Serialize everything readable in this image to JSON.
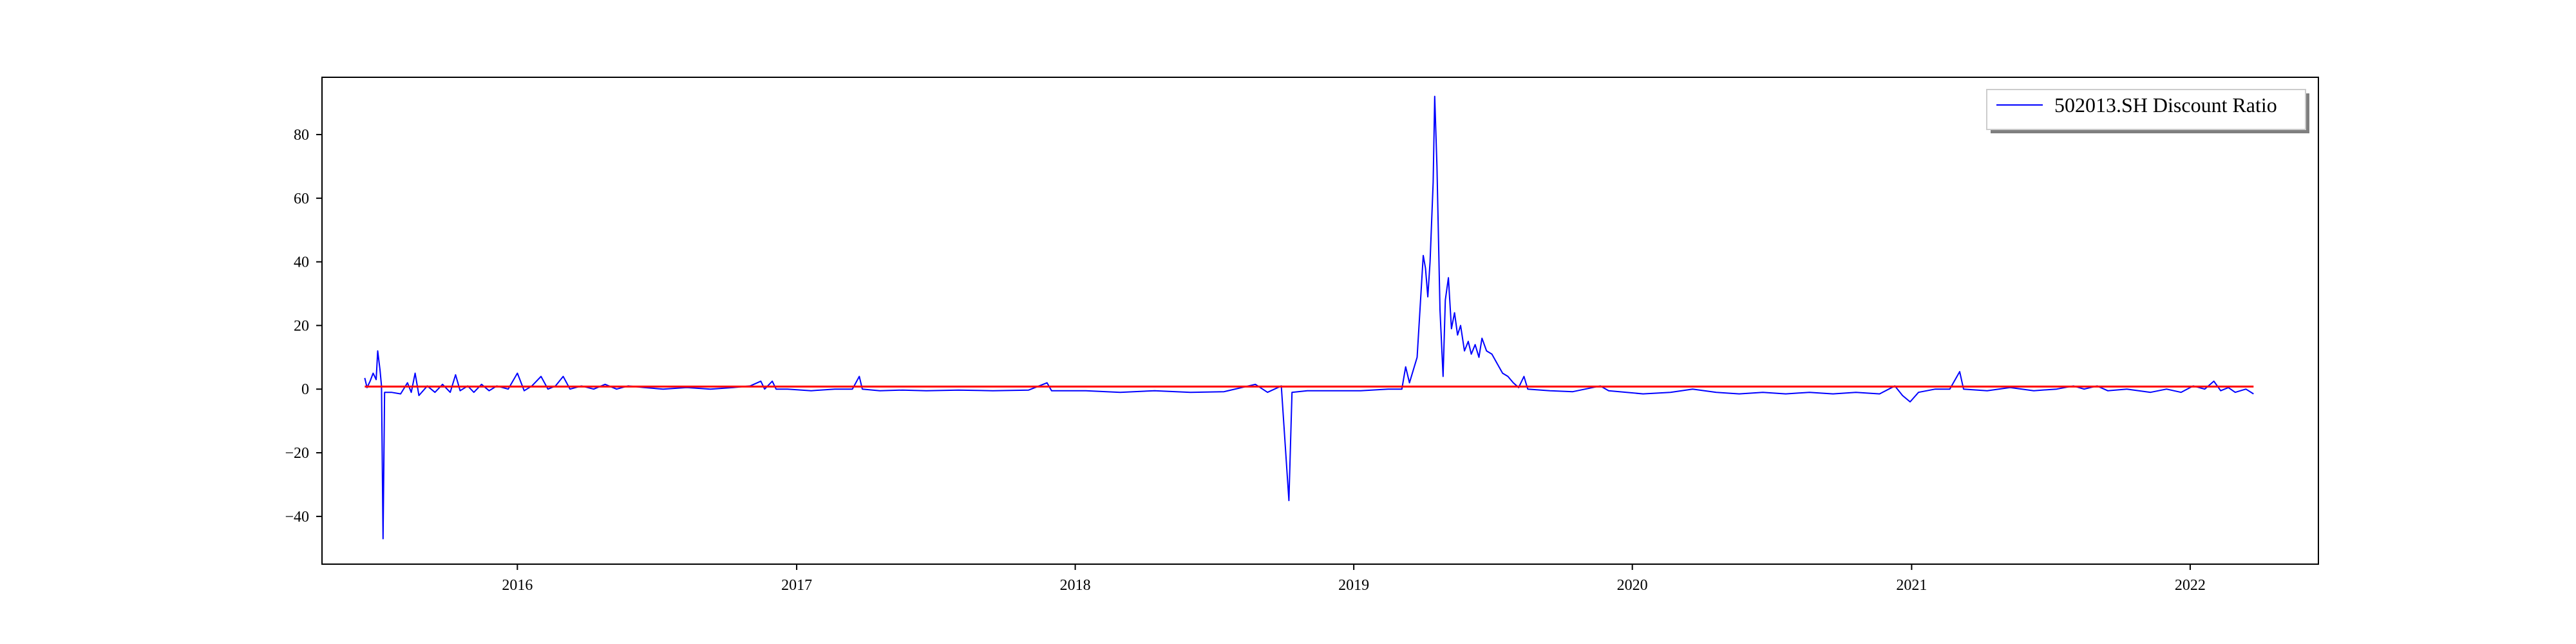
{
  "chart_data": {
    "type": "line",
    "title": "",
    "xlabel": "",
    "ylabel": "",
    "xlim": [
      "2015-04-20",
      "2022-06-18"
    ],
    "ylim": [
      -55,
      98
    ],
    "x_ticks": [
      {
        "date": "2016-01-01",
        "label": "2016"
      },
      {
        "date": "2017-01-01",
        "label": "2017"
      },
      {
        "date": "2018-01-01",
        "label": "2018"
      },
      {
        "date": "2019-01-01",
        "label": "2019"
      },
      {
        "date": "2020-01-01",
        "label": "2020"
      },
      {
        "date": "2021-01-01",
        "label": "2021"
      },
      {
        "date": "2022-01-01",
        "label": "2022"
      }
    ],
    "y_ticks": [
      -40,
      -20,
      0,
      20,
      40,
      60,
      80
    ],
    "grid": false,
    "legend": {
      "placement": "top-right",
      "entries": [
        "502013.SH Discount Ratio"
      ]
    },
    "series": [
      {
        "name": "502013.SH Discount Ratio",
        "color": "#0000ff",
        "points": [
          [
            "2015-06-15",
            3.5
          ],
          [
            "2015-06-18",
            0.5
          ],
          [
            "2015-06-22",
            2.5
          ],
          [
            "2015-06-26",
            5
          ],
          [
            "2015-06-30",
            3
          ],
          [
            "2015-07-02",
            12
          ],
          [
            "2015-07-05",
            6
          ],
          [
            "2015-07-07",
            1
          ],
          [
            "2015-07-09",
            -47
          ],
          [
            "2015-07-11",
            -1
          ],
          [
            "2015-07-20",
            -1
          ],
          [
            "2015-08-01",
            -1.5
          ],
          [
            "2015-08-10",
            2
          ],
          [
            "2015-08-15",
            -1
          ],
          [
            "2015-08-20",
            5
          ],
          [
            "2015-08-25",
            -2
          ],
          [
            "2015-09-05",
            1
          ],
          [
            "2015-09-15",
            -1
          ],
          [
            "2015-09-25",
            1.5
          ],
          [
            "2015-10-05",
            -1
          ],
          [
            "2015-10-12",
            4.5
          ],
          [
            "2015-10-18",
            -0.5
          ],
          [
            "2015-10-28",
            1
          ],
          [
            "2015-11-05",
            -1
          ],
          [
            "2015-11-15",
            1.5
          ],
          [
            "2015-11-25",
            -0.5
          ],
          [
            "2015-12-05",
            1
          ],
          [
            "2015-12-20",
            0
          ],
          [
            "2016-01-01",
            5
          ],
          [
            "2016-01-10",
            -0.5
          ],
          [
            "2016-01-20",
            1
          ],
          [
            "2016-02-01",
            4
          ],
          [
            "2016-02-10",
            0
          ],
          [
            "2016-02-20",
            1
          ],
          [
            "2016-03-01",
            4
          ],
          [
            "2016-03-10",
            0
          ],
          [
            "2016-03-25",
            1
          ],
          [
            "2016-04-10",
            0
          ],
          [
            "2016-04-25",
            1.5
          ],
          [
            "2016-05-10",
            0
          ],
          [
            "2016-05-25",
            1
          ],
          [
            "2016-06-15",
            0.5
          ],
          [
            "2016-07-10",
            0
          ],
          [
            "2016-08-10",
            0.5
          ],
          [
            "2016-09-10",
            0
          ],
          [
            "2016-10-10",
            0.5
          ],
          [
            "2016-11-01",
            1
          ],
          [
            "2016-11-15",
            2.5
          ],
          [
            "2016-11-20",
            0
          ],
          [
            "2016-11-30",
            2.5
          ],
          [
            "2016-12-05",
            0
          ],
          [
            "2016-12-20",
            0
          ],
          [
            "2017-01-20",
            -0.5
          ],
          [
            "2017-02-20",
            0
          ],
          [
            "2017-03-15",
            0
          ],
          [
            "2017-03-24",
            4
          ],
          [
            "2017-03-28",
            0
          ],
          [
            "2017-04-20",
            -0.5
          ],
          [
            "2017-05-20",
            -0.3
          ],
          [
            "2017-06-20",
            -0.5
          ],
          [
            "2017-08-01",
            -0.3
          ],
          [
            "2017-09-15",
            -0.5
          ],
          [
            "2017-11-01",
            -0.3
          ],
          [
            "2017-11-25",
            2
          ],
          [
            "2017-12-01",
            -0.5
          ],
          [
            "2018-01-15",
            -0.5
          ],
          [
            "2018-03-01",
            -1
          ],
          [
            "2018-04-15",
            -0.5
          ],
          [
            "2018-06-01",
            -1
          ],
          [
            "2018-07-15",
            -0.8
          ],
          [
            "2018-08-25",
            1.5
          ],
          [
            "2018-09-10",
            -1
          ],
          [
            "2018-09-28",
            1
          ],
          [
            "2018-10-08",
            -35
          ],
          [
            "2018-10-12",
            -1
          ],
          [
            "2018-11-01",
            -0.5
          ],
          [
            "2018-12-01",
            -0.5
          ],
          [
            "2019-01-10",
            -0.5
          ],
          [
            "2019-02-15",
            0
          ],
          [
            "2019-03-05",
            0
          ],
          [
            "2019-03-10",
            7
          ],
          [
            "2019-03-15",
            2
          ],
          [
            "2019-03-25",
            10
          ],
          [
            "2019-04-02",
            42
          ],
          [
            "2019-04-05",
            38
          ],
          [
            "2019-04-08",
            29
          ],
          [
            "2019-04-11",
            40
          ],
          [
            "2019-04-15",
            65
          ],
          [
            "2019-04-17",
            92
          ],
          [
            "2019-04-20",
            70
          ],
          [
            "2019-04-24",
            25
          ],
          [
            "2019-04-28",
            4
          ],
          [
            "2019-05-01",
            28
          ],
          [
            "2019-05-05",
            35
          ],
          [
            "2019-05-09",
            19
          ],
          [
            "2019-05-13",
            24
          ],
          [
            "2019-05-17",
            17
          ],
          [
            "2019-05-21",
            20
          ],
          [
            "2019-05-26",
            12
          ],
          [
            "2019-05-31",
            15
          ],
          [
            "2019-06-04",
            11
          ],
          [
            "2019-06-09",
            14
          ],
          [
            "2019-06-14",
            10
          ],
          [
            "2019-06-18",
            16
          ],
          [
            "2019-06-24",
            12
          ],
          [
            "2019-07-01",
            11
          ],
          [
            "2019-07-08",
            8
          ],
          [
            "2019-07-15",
            5
          ],
          [
            "2019-07-22",
            4
          ],
          [
            "2019-07-29",
            2
          ],
          [
            "2019-08-05",
            0.5
          ],
          [
            "2019-08-12",
            4
          ],
          [
            "2019-08-17",
            0
          ],
          [
            "2019-09-15",
            -0.5
          ],
          [
            "2019-10-15",
            -0.8
          ],
          [
            "2019-11-20",
            1
          ],
          [
            "2019-12-01",
            -0.5
          ],
          [
            "2020-01-15",
            -1.5
          ],
          [
            "2020-02-20",
            -1
          ],
          [
            "2020-03-20",
            0
          ],
          [
            "2020-04-20",
            -1
          ],
          [
            "2020-05-20",
            -1.5
          ],
          [
            "2020-06-20",
            -1
          ],
          [
            "2020-07-20",
            -1.5
          ],
          [
            "2020-08-20",
            -1
          ],
          [
            "2020-09-20",
            -1.5
          ],
          [
            "2020-10-20",
            -1
          ],
          [
            "2020-11-20",
            -1.5
          ],
          [
            "2020-12-10",
            1
          ],
          [
            "2020-12-20",
            -2
          ],
          [
            "2020-12-30",
            -4
          ],
          [
            "2021-01-10",
            -1
          ],
          [
            "2021-02-01",
            0
          ],
          [
            "2021-02-20",
            0
          ],
          [
            "2021-03-05",
            5.5
          ],
          [
            "2021-03-10",
            0
          ],
          [
            "2021-04-10",
            -0.5
          ],
          [
            "2021-05-10",
            0.5
          ],
          [
            "2021-06-10",
            -0.5
          ],
          [
            "2021-07-10",
            0
          ],
          [
            "2021-08-01",
            1
          ],
          [
            "2021-08-15",
            0
          ],
          [
            "2021-09-01",
            1
          ],
          [
            "2021-09-15",
            -0.5
          ],
          [
            "2021-10-10",
            0
          ],
          [
            "2021-11-10",
            -1
          ],
          [
            "2021-12-01",
            0
          ],
          [
            "2021-12-20",
            -1
          ],
          [
            "2022-01-05",
            1
          ],
          [
            "2022-01-20",
            0
          ],
          [
            "2022-02-01",
            2.5
          ],
          [
            "2022-02-10",
            -0.5
          ],
          [
            "2022-02-20",
            0.5
          ],
          [
            "2022-03-01",
            -1
          ],
          [
            "2022-03-15",
            0
          ],
          [
            "2022-03-25",
            -1.5
          ]
        ]
      },
      {
        "name": "",
        "color": "#ff0000",
        "points": [
          [
            "2015-06-15",
            0.8
          ],
          [
            "2022-03-25",
            0.8
          ]
        ]
      }
    ]
  }
}
